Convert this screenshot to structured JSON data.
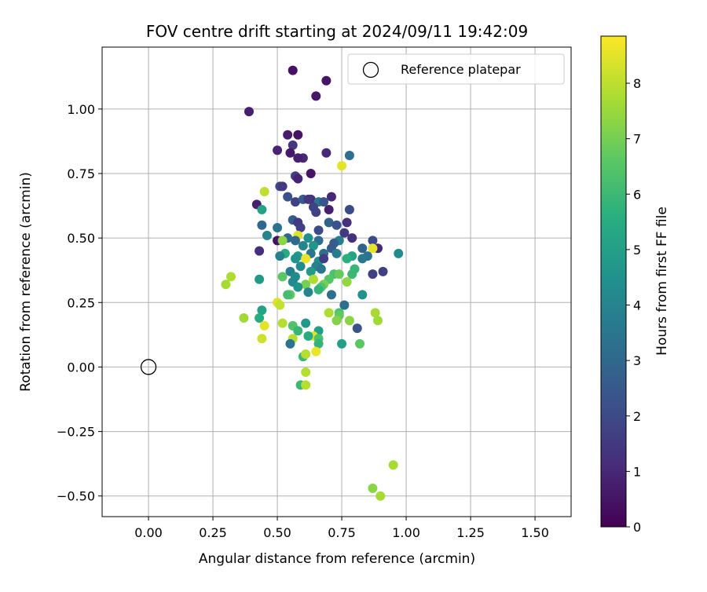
{
  "chart_data": {
    "type": "scatter",
    "title": "FOV centre drift starting at 2024/09/11 19:42:09",
    "xlabel": "Angular distance from reference (arcmin)",
    "ylabel": "Rotation from reference (arcmin)",
    "xlim": [
      -0.18,
      1.64
    ],
    "ylim": [
      -0.58,
      1.24
    ],
    "xticks": [
      "0.00",
      "0.25",
      "0.50",
      "0.75",
      "1.00",
      "1.25",
      "1.50"
    ],
    "yticks": [
      "−0.50",
      "−0.25",
      "0.00",
      "0.25",
      "0.50",
      "0.75",
      "1.00"
    ],
    "xtick_values": [
      0,
      0.25,
      0.5,
      0.75,
      1.0,
      1.25,
      1.5
    ],
    "ytick_values": [
      -0.5,
      -0.25,
      0,
      0.25,
      0.5,
      0.75,
      1.0
    ],
    "grid": true,
    "legend": {
      "placement": "top-right",
      "label": "Reference platepar"
    },
    "reference": {
      "x": 0.0,
      "y": 0.0
    },
    "colorbar": {
      "label": "Hours from first FF file",
      "min": 0,
      "max": 8.85,
      "ticks": [
        "0",
        "1",
        "2",
        "3",
        "4",
        "5",
        "6",
        "7",
        "8"
      ],
      "tick_values": [
        0,
        1,
        2,
        3,
        4,
        5,
        6,
        7,
        8
      ],
      "colormap": "viridis"
    },
    "points": [
      [
        0.56,
        1.15,
        0.4
      ],
      [
        0.69,
        1.11,
        0.5
      ],
      [
        0.65,
        1.05,
        0.6
      ],
      [
        0.39,
        0.99,
        0.8
      ],
      [
        0.58,
        0.9,
        0.5
      ],
      [
        0.54,
        0.9,
        0.7
      ],
      [
        0.5,
        0.84,
        0.9
      ],
      [
        0.56,
        0.86,
        1.4
      ],
      [
        0.55,
        0.83,
        0.6
      ],
      [
        0.6,
        0.81,
        1.0
      ],
      [
        0.58,
        0.81,
        0.8
      ],
      [
        0.69,
        0.83,
        1.0
      ],
      [
        0.78,
        0.82,
        3.2
      ],
      [
        0.75,
        0.78,
        8.5
      ],
      [
        0.57,
        0.74,
        1.6
      ],
      [
        0.63,
        0.75,
        0.5
      ],
      [
        0.58,
        0.73,
        0.9
      ],
      [
        0.51,
        0.7,
        2.0
      ],
      [
        0.52,
        0.7,
        1.5
      ],
      [
        0.45,
        0.68,
        8.0
      ],
      [
        0.54,
        0.66,
        2.2
      ],
      [
        0.57,
        0.64,
        1.8
      ],
      [
        0.63,
        0.65,
        1.2
      ],
      [
        0.71,
        0.66,
        1.0
      ],
      [
        0.42,
        0.63,
        0.8
      ],
      [
        0.6,
        0.65,
        2.6
      ],
      [
        0.62,
        0.65,
        1.4
      ],
      [
        0.66,
        0.64,
        3.5
      ],
      [
        0.68,
        0.64,
        2.4
      ],
      [
        0.64,
        0.62,
        1.8
      ],
      [
        0.7,
        0.61,
        0.8
      ],
      [
        0.78,
        0.61,
        2.0
      ],
      [
        0.44,
        0.61,
        5.1
      ],
      [
        0.65,
        0.6,
        1.7
      ],
      [
        0.56,
        0.57,
        2.6
      ],
      [
        0.58,
        0.56,
        1.5
      ],
      [
        0.7,
        0.56,
        2.8
      ],
      [
        0.77,
        0.56,
        1.3
      ],
      [
        0.44,
        0.55,
        3.0
      ],
      [
        0.73,
        0.55,
        2.2
      ],
      [
        0.5,
        0.54,
        3.4
      ],
      [
        0.59,
        0.54,
        1.7
      ],
      [
        0.66,
        0.53,
        2.0
      ],
      [
        0.76,
        0.52,
        1.5
      ],
      [
        0.46,
        0.51,
        4.0
      ],
      [
        0.58,
        0.51,
        8.4
      ],
      [
        0.54,
        0.5,
        3.0
      ],
      [
        0.62,
        0.5,
        4.4
      ],
      [
        0.79,
        0.5,
        1.2
      ],
      [
        0.5,
        0.49,
        0.5
      ],
      [
        0.57,
        0.49,
        3.0
      ],
      [
        0.66,
        0.49,
        3.2
      ],
      [
        0.74,
        0.49,
        3.8
      ],
      [
        0.87,
        0.49,
        2.0
      ],
      [
        0.52,
        0.49,
        7.3
      ],
      [
        0.72,
        0.48,
        2.7
      ],
      [
        0.64,
        0.47,
        4.6
      ],
      [
        0.6,
        0.47,
        4.0
      ],
      [
        0.71,
        0.46,
        2.6
      ],
      [
        0.83,
        0.46,
        2.8
      ],
      [
        0.89,
        0.46,
        1.0
      ],
      [
        0.87,
        0.46,
        8.5
      ],
      [
        0.97,
        0.44,
        4.2
      ],
      [
        0.43,
        0.45,
        1.2
      ],
      [
        0.53,
        0.44,
        5.5
      ],
      [
        0.58,
        0.43,
        4.8
      ],
      [
        0.63,
        0.44,
        3.5
      ],
      [
        0.68,
        0.44,
        3.2
      ],
      [
        0.73,
        0.44,
        3.7
      ],
      [
        0.79,
        0.43,
        5.2
      ],
      [
        0.85,
        0.43,
        3.4
      ],
      [
        0.51,
        0.43,
        3.9
      ],
      [
        0.57,
        0.42,
        4.5
      ],
      [
        0.61,
        0.42,
        8.6
      ],
      [
        0.66,
        0.41,
        4.4
      ],
      [
        0.68,
        0.42,
        1.6
      ],
      [
        0.77,
        0.42,
        5.6
      ],
      [
        0.83,
        0.42,
        3.6
      ],
      [
        0.59,
        0.39,
        4.3
      ],
      [
        0.65,
        0.39,
        3.9
      ],
      [
        0.67,
        0.38,
        3.5
      ],
      [
        0.8,
        0.38,
        5.9
      ],
      [
        0.91,
        0.37,
        1.7
      ],
      [
        0.55,
        0.37,
        3.8
      ],
      [
        0.63,
        0.37,
        4.8
      ],
      [
        0.72,
        0.36,
        6.3
      ],
      [
        0.74,
        0.36,
        6.8
      ],
      [
        0.79,
        0.36,
        6.0
      ],
      [
        0.87,
        0.36,
        1.7
      ],
      [
        0.52,
        0.35,
        6.6
      ],
      [
        0.57,
        0.35,
        4.3
      ],
      [
        0.64,
        0.34,
        7.8
      ],
      [
        0.43,
        0.34,
        4.8
      ],
      [
        0.56,
        0.33,
        4.2
      ],
      [
        0.7,
        0.34,
        6.5
      ],
      [
        0.77,
        0.33,
        7.4
      ],
      [
        0.68,
        0.32,
        7.0
      ],
      [
        0.61,
        0.32,
        7.0
      ],
      [
        0.67,
        0.31,
        6.4
      ],
      [
        0.58,
        0.31,
        4.6
      ],
      [
        0.66,
        0.3,
        5.8
      ],
      [
        0.32,
        0.35,
        7.8
      ],
      [
        0.3,
        0.32,
        7.7
      ],
      [
        0.62,
        0.29,
        4.0
      ],
      [
        0.83,
        0.28,
        4.5
      ],
      [
        0.55,
        0.28,
        6.7
      ],
      [
        0.54,
        0.28,
        6.2
      ],
      [
        0.71,
        0.28,
        3.2
      ],
      [
        0.5,
        0.25,
        8.4
      ],
      [
        0.51,
        0.24,
        8.1
      ],
      [
        0.76,
        0.24,
        3.3
      ],
      [
        0.44,
        0.22,
        5.1
      ],
      [
        0.88,
        0.21,
        7.7
      ],
      [
        0.74,
        0.21,
        6.3
      ],
      [
        0.7,
        0.21,
        7.8
      ],
      [
        0.43,
        0.19,
        5.5
      ],
      [
        0.37,
        0.19,
        7.6
      ],
      [
        0.74,
        0.2,
        6.7
      ],
      [
        0.78,
        0.18,
        7.3
      ],
      [
        0.89,
        0.18,
        7.6
      ],
      [
        0.73,
        0.18,
        7.2
      ],
      [
        0.52,
        0.17,
        7.9
      ],
      [
        0.61,
        0.17,
        4.7
      ],
      [
        0.56,
        0.16,
        6.4
      ],
      [
        0.45,
        0.16,
        8.5
      ],
      [
        0.81,
        0.15,
        2.3
      ],
      [
        0.58,
        0.14,
        5.9
      ],
      [
        0.66,
        0.14,
        5.0
      ],
      [
        0.64,
        0.12,
        8.5
      ],
      [
        0.56,
        0.11,
        7.9
      ],
      [
        0.62,
        0.12,
        5.5
      ],
      [
        0.66,
        0.11,
        6.3
      ],
      [
        0.44,
        0.11,
        8.2
      ],
      [
        0.55,
        0.09,
        3.4
      ],
      [
        0.75,
        0.09,
        5.0
      ],
      [
        0.66,
        0.09,
        5.8
      ],
      [
        0.82,
        0.09,
        6.6
      ],
      [
        0.65,
        0.06,
        8.6
      ],
      [
        0.6,
        0.04,
        6.0
      ],
      [
        0.61,
        0.05,
        7.9
      ],
      [
        0.61,
        -0.02,
        7.9
      ],
      [
        0.59,
        -0.07,
        6.0
      ],
      [
        0.61,
        -0.07,
        7.9
      ],
      [
        0.95,
        -0.38,
        7.7
      ],
      [
        0.87,
        -0.47,
        7.3
      ],
      [
        0.9,
        -0.5,
        7.7
      ]
    ]
  }
}
